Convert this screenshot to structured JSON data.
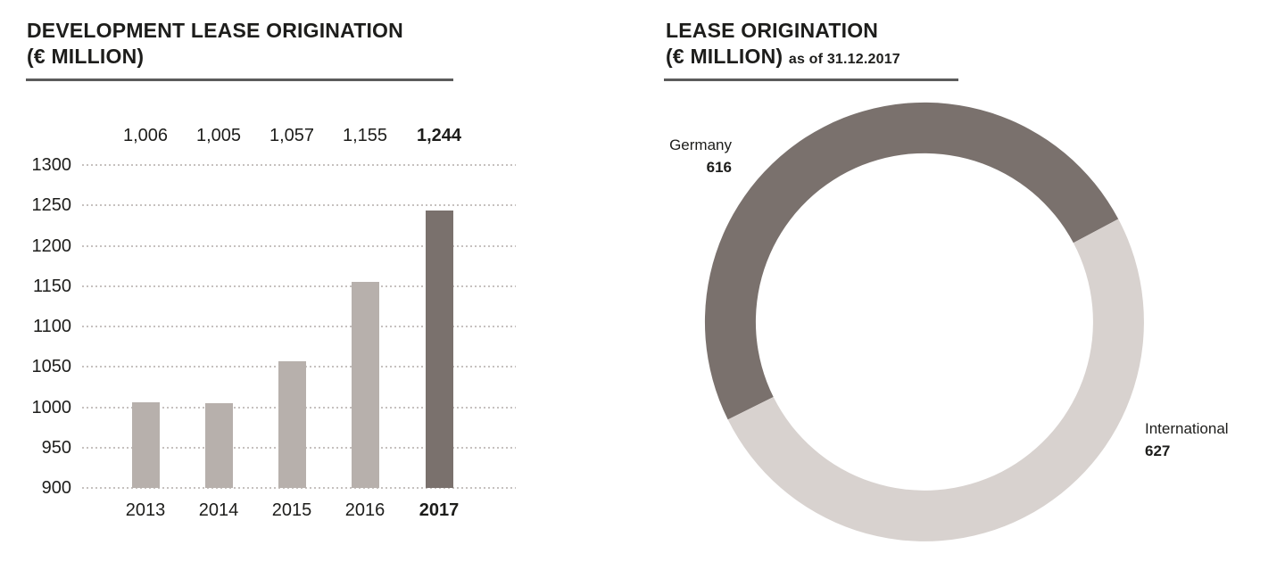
{
  "chart_data": [
    {
      "type": "bar",
      "title": "DEVELOPMENT LEASE ORIGINATION (€ MILLION)",
      "title_line1": "DEVELOPMENT LEASE ORIGINATION",
      "title_line2": "(€ MILLION)",
      "categories": [
        "2013",
        "2014",
        "2015",
        "2016",
        "2017"
      ],
      "values": [
        1006,
        1005,
        1057,
        1155,
        1244
      ],
      "value_labels": [
        "1,006",
        "1,005",
        "1,057",
        "1,155",
        "1,244"
      ],
      "highlight_index": 4,
      "xlabel": "",
      "ylabel": "",
      "ylim": [
        900,
        1300
      ],
      "yticks": [
        1300,
        1250,
        1200,
        1150,
        1100,
        1050,
        1000,
        950,
        900
      ],
      "grid": "dotted-horizontal",
      "legend": "none",
      "colors": {
        "bar": "#b7b0ac",
        "highlight": "#7a716d",
        "gridline": "#c6c1bf",
        "text": "#1d1d1b"
      }
    },
    {
      "type": "donut",
      "title": "LEASE ORIGINATION (€ MILLION) as of 31.12.2017",
      "title_line1": "LEASE ORIGINATION",
      "title_line2": "(€ MILLION)",
      "title_suffix": "as of 31.12.2017",
      "total": 1243,
      "start_angle_deg": 28,
      "direction": "counterclockwise",
      "segments": [
        {
          "label": "Germany",
          "value": 616,
          "value_label": "616",
          "color": "#7a716d",
          "label_position": "upper-left"
        },
        {
          "label": "International",
          "value": 627,
          "value_label": "627",
          "color": "#d8d2cf",
          "label_position": "right"
        }
      ]
    }
  ]
}
